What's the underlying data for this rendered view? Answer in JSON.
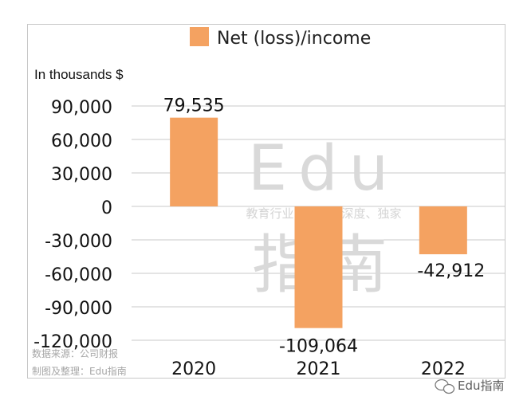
{
  "chart_data": {
    "type": "bar",
    "legend": {
      "label": "Net (loss)/income",
      "color": "#F4A261",
      "placement": "top"
    },
    "unit_label": "In thousands $",
    "categories": [
      "2020",
      "2021",
      "2022"
    ],
    "series": [
      {
        "name": "Net (loss)/income",
        "values": [
          79535,
          -109064,
          -42912
        ]
      }
    ],
    "data_labels": [
      "79,535",
      "-109,064",
      "-42,912"
    ],
    "yticks": [
      90000,
      60000,
      30000,
      0,
      -30000,
      -60000,
      -90000,
      -120000
    ],
    "ytick_labels": [
      "90,000",
      "60,000",
      "30,000",
      "0",
      "-30,000",
      "-60,000",
      "-90,000",
      "-120,000"
    ],
    "ylim": [
      -120000,
      90000
    ],
    "grid": true,
    "bar_color": "#F4A261"
  },
  "watermark": {
    "latin": "Edu",
    "tagline": "教育行业，前沿、深度、独家",
    "cjk": "指南"
  },
  "source_lines": [
    "数据来源：公司财报",
    "制图及整理：Edu指南"
  ],
  "brand": {
    "name": "Edu指南",
    "icon": "wechat-icon"
  }
}
